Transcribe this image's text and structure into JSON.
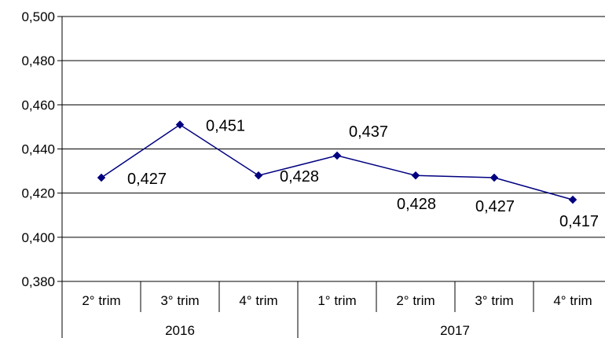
{
  "chart_data": {
    "type": "line",
    "title": "",
    "xlabel": "",
    "ylabel": "",
    "ylim": [
      0.38,
      0.5
    ],
    "yticks": [
      "0,500",
      "0,480",
      "0,460",
      "0,440",
      "0,420",
      "0,400",
      "0,380"
    ],
    "categories": [
      "2° trim",
      "3° trim",
      "4° trim",
      "1° trim",
      "2° trim",
      "3° trim",
      "4° trim"
    ],
    "category_groups": [
      {
        "label": "2016",
        "span": 3
      },
      {
        "label": "2017",
        "span": 4
      }
    ],
    "series": [
      {
        "values": [
          0.427,
          0.451,
          0.428,
          0.437,
          0.428,
          0.427,
          0.417
        ],
        "data_labels": [
          "0,427",
          "0,451",
          "0,428",
          "0,437",
          "0,428",
          "0,427",
          "0,417"
        ],
        "color": "#000080",
        "marker": "diamond"
      }
    ],
    "grid": true,
    "legend": "none"
  }
}
